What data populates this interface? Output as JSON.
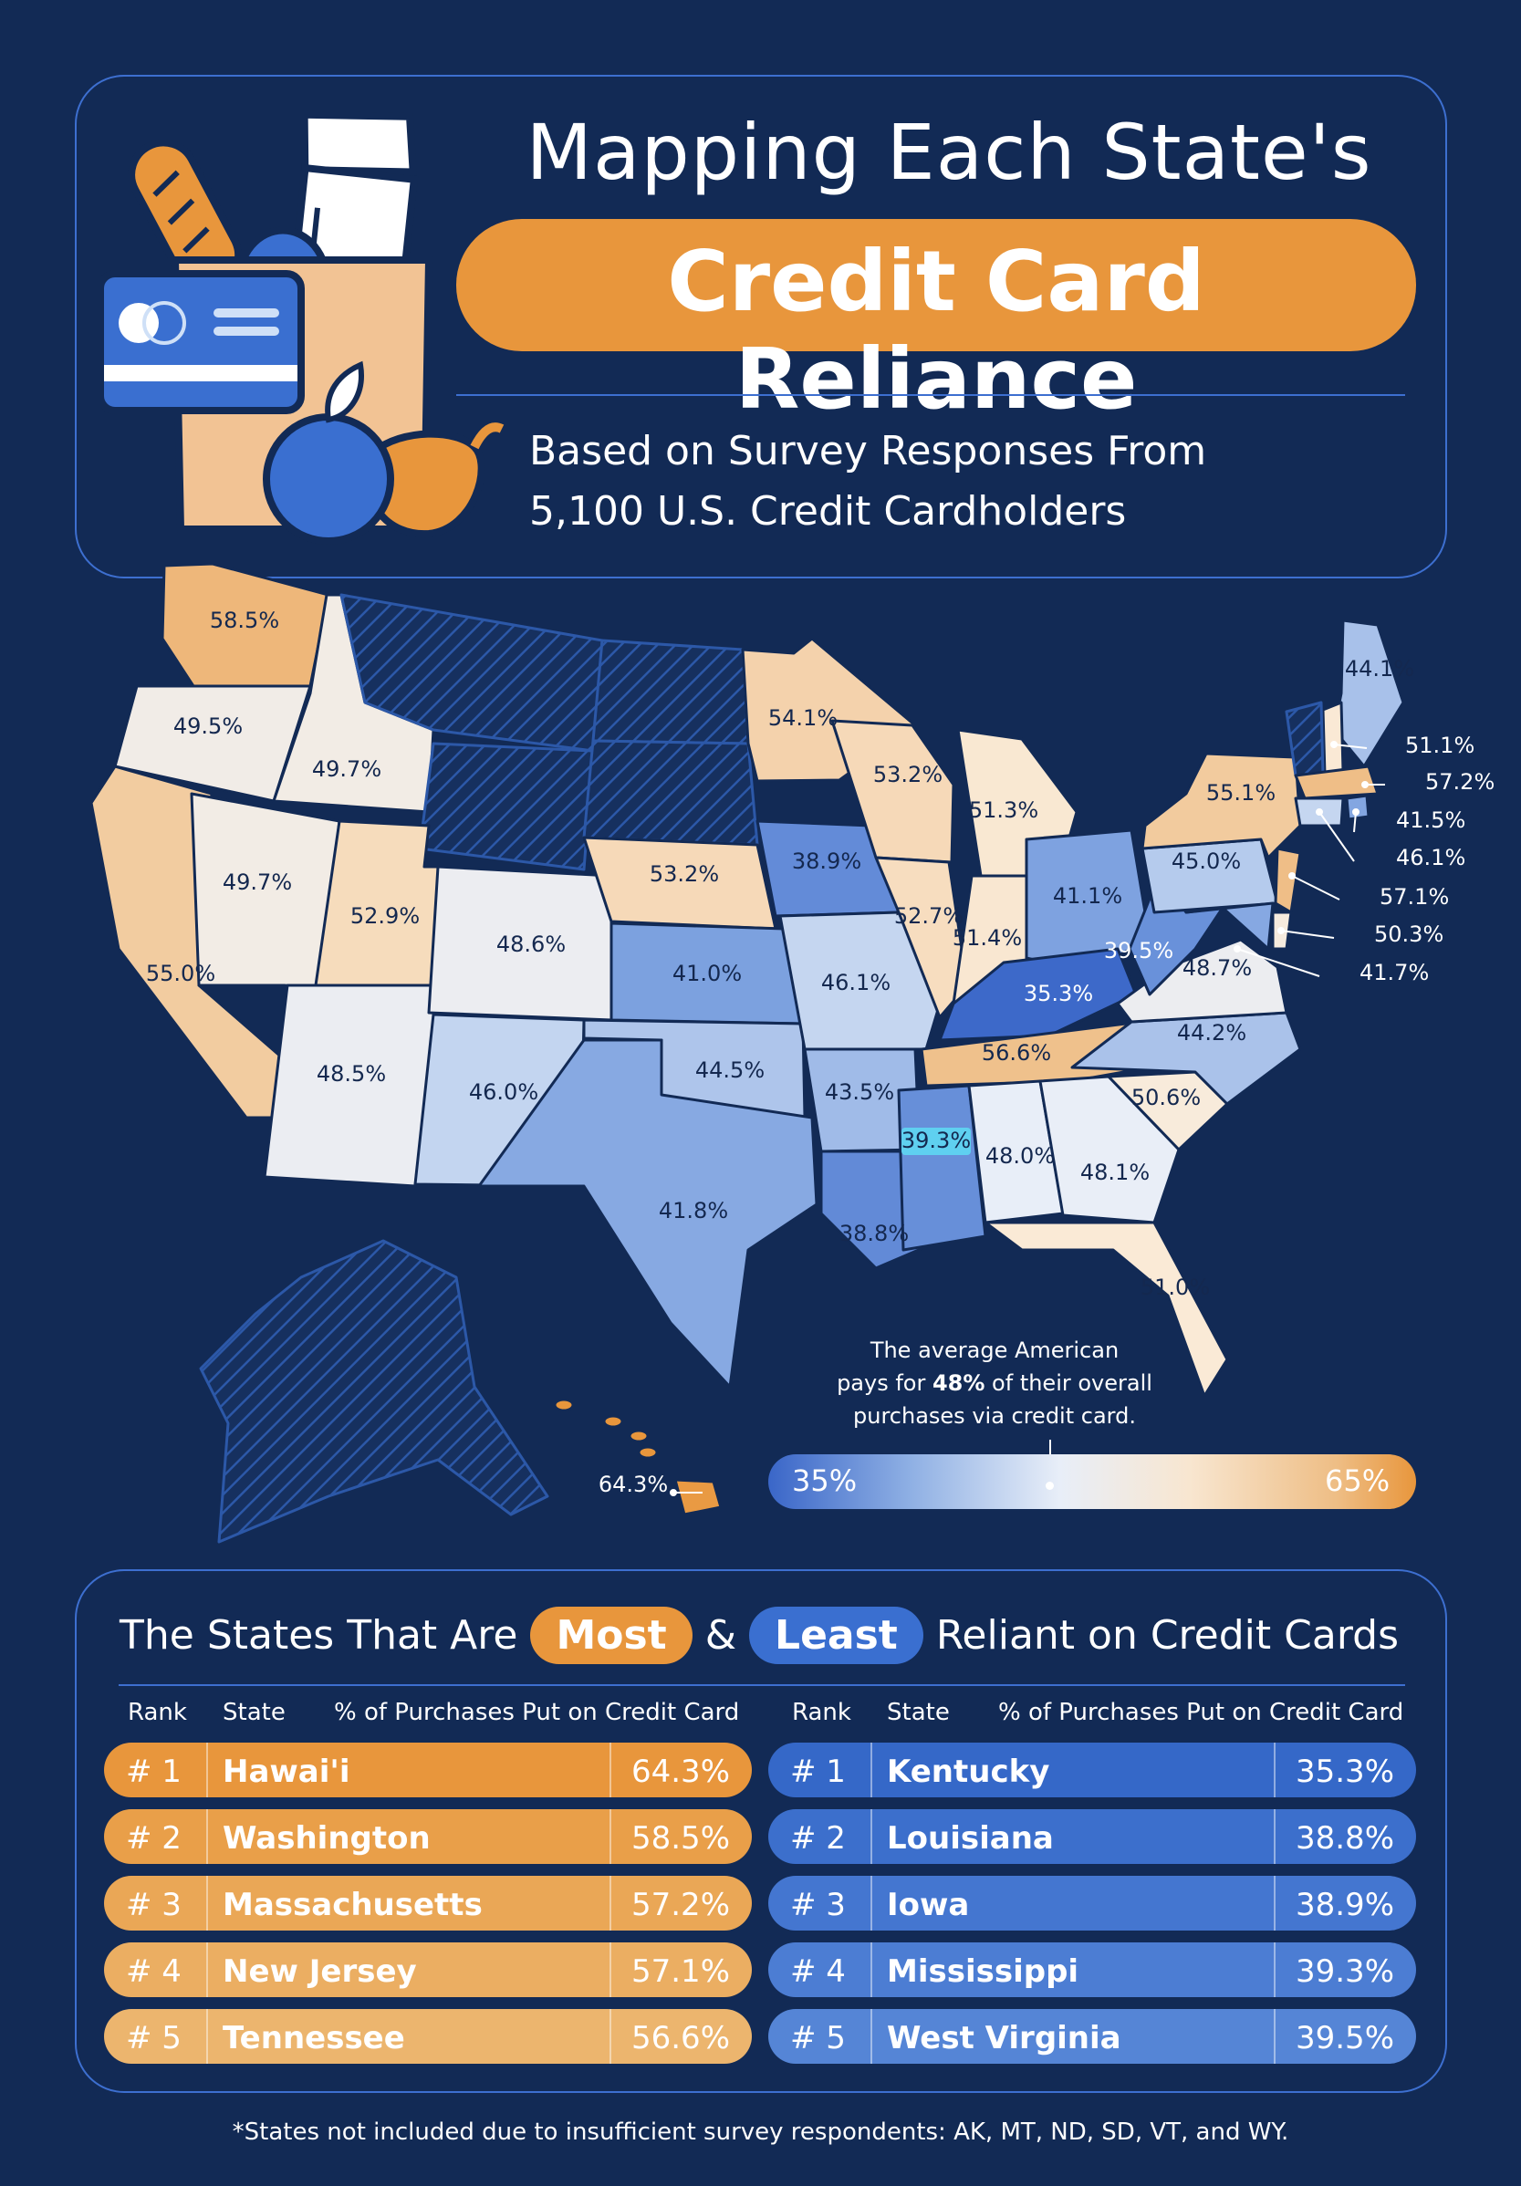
{
  "header": {
    "title_line1": "Mapping Each State's",
    "title_line2": "Credit Card Reliance",
    "subtitle_line1": "Based on Survey Responses From",
    "subtitle_line2": "5,100 U.S. Credit Cardholders"
  },
  "map": {
    "states": [
      {
        "code": "WA",
        "value": "58.5%"
      },
      {
        "code": "OR",
        "value": "49.5%"
      },
      {
        "code": "ID",
        "value": "49.7%"
      },
      {
        "code": "CA",
        "value": "55.0%"
      },
      {
        "code": "NV",
        "value": "49.7%"
      },
      {
        "code": "UT",
        "value": "52.9%"
      },
      {
        "code": "AZ",
        "value": "48.5%"
      },
      {
        "code": "CO",
        "value": "48.6%"
      },
      {
        "code": "NM",
        "value": "46.0%"
      },
      {
        "code": "NE",
        "value": "53.2%"
      },
      {
        "code": "KS",
        "value": "41.0%"
      },
      {
        "code": "OK",
        "value": "44.5%"
      },
      {
        "code": "TX",
        "value": "41.8%"
      },
      {
        "code": "MN",
        "value": "54.1%"
      },
      {
        "code": "IA",
        "value": "38.9%"
      },
      {
        "code": "MO",
        "value": "46.1%"
      },
      {
        "code": "AR",
        "value": "43.5%"
      },
      {
        "code": "LA",
        "value": "38.8%"
      },
      {
        "code": "WI",
        "value": "53.2%"
      },
      {
        "code": "IL",
        "value": "52.7%"
      },
      {
        "code": "MI",
        "value": "51.3%"
      },
      {
        "code": "IN",
        "value": "51.4%"
      },
      {
        "code": "OH",
        "value": "41.1%"
      },
      {
        "code": "KY",
        "value": "35.3%"
      },
      {
        "code": "TN",
        "value": "56.6%"
      },
      {
        "code": "MS",
        "value": "39.3%"
      },
      {
        "code": "AL",
        "value": "48.0%"
      },
      {
        "code": "GA",
        "value": "48.1%"
      },
      {
        "code": "FL",
        "value": "51.0%"
      },
      {
        "code": "SC",
        "value": "50.6%"
      },
      {
        "code": "NC",
        "value": "44.2%"
      },
      {
        "code": "VA",
        "value": "48.7%"
      },
      {
        "code": "WV",
        "value": "39.5%"
      },
      {
        "code": "PA",
        "value": "45.0%"
      },
      {
        "code": "NY",
        "value": "55.1%"
      },
      {
        "code": "ME",
        "value": "44.1%"
      },
      {
        "code": "NH",
        "value": "51.1%"
      },
      {
        "code": "MA",
        "value": "57.2%"
      },
      {
        "code": "RI",
        "value": "41.5%"
      },
      {
        "code": "CT",
        "value": "46.1%"
      },
      {
        "code": "NJ",
        "value": "57.1%"
      },
      {
        "code": "DE",
        "value": "50.3%"
      },
      {
        "code": "MD",
        "value": "41.7%"
      },
      {
        "code": "HI",
        "value": "64.3%"
      }
    ],
    "excluded": [
      "AK",
      "MT",
      "ND",
      "SD",
      "VT",
      "WY"
    ]
  },
  "legend": {
    "note_line1": "The average American",
    "note_pre": "pays for ",
    "note_bold": "48%",
    "note_post": " of their overall",
    "note_line3": "purchases via credit card.",
    "min_label": "35%",
    "max_label": "65%",
    "min_color": "#3a66c8",
    "max_color": "#e8963c"
  },
  "table": {
    "heading_pre": "The States That Are",
    "most_label": "Most",
    "amp": "&",
    "least_label": "Least",
    "heading_post": "Reliant on Credit Cards",
    "col_rank": "Rank",
    "col_state": "State",
    "col_pct": "% of Purchases Put on Credit Card",
    "most": [
      {
        "rank": "# 1",
        "state": "Hawai'i",
        "value": "64.3%"
      },
      {
        "rank": "# 2",
        "state": "Washington",
        "value": "58.5%"
      },
      {
        "rank": "# 3",
        "state": "Massachusetts",
        "value": "57.2%"
      },
      {
        "rank": "# 4",
        "state": "New Jersey",
        "value": "57.1%"
      },
      {
        "rank": "# 5",
        "state": "Tennessee",
        "value": "56.6%"
      }
    ],
    "least": [
      {
        "rank": "# 1",
        "state": "Kentucky",
        "value": "35.3%"
      },
      {
        "rank": "# 2",
        "state": "Louisiana",
        "value": "38.8%"
      },
      {
        "rank": "# 3",
        "state": "Iowa",
        "value": "38.9%"
      },
      {
        "rank": "# 4",
        "state": "Mississippi",
        "value": "39.3%"
      },
      {
        "rank": "# 5",
        "state": "West Virginia",
        "value": "39.5%"
      }
    ]
  },
  "footnote": "*States not included due to insufficient survey respondents: AK, MT, ND, SD, VT, and WY."
}
